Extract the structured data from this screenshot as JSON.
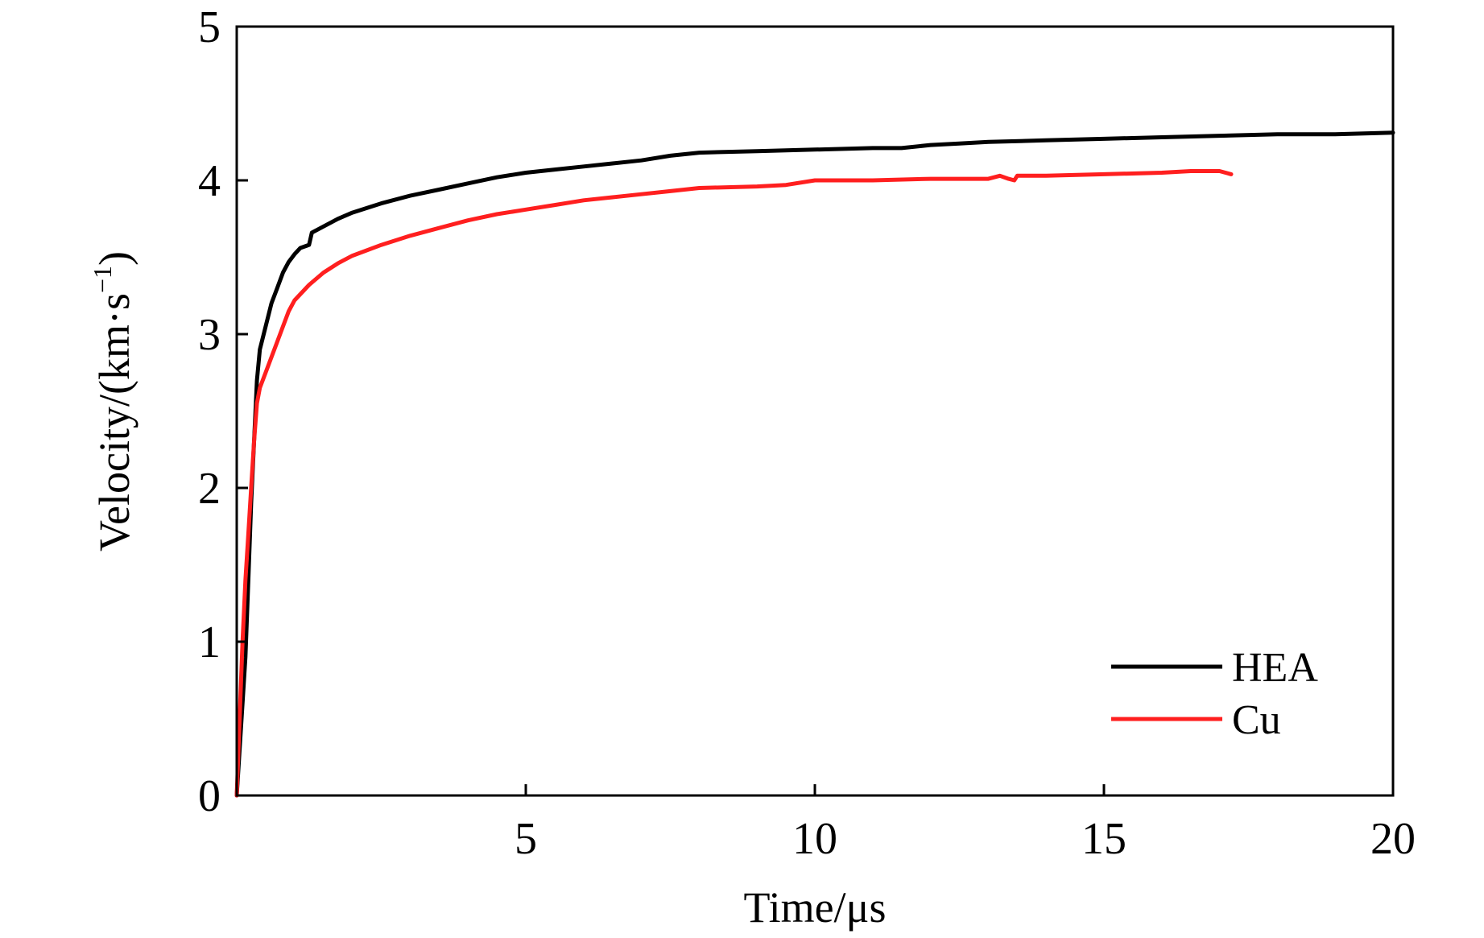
{
  "chart_data": {
    "type": "line",
    "xlabel": "Time/μs",
    "ylabel_main": "Velocity/(km·s",
    "ylabel_sup": "−1",
    "ylabel_close": ")",
    "xlim": [
      0,
      20
    ],
    "ylim": [
      0,
      5
    ],
    "x_ticks": [
      5,
      10,
      15,
      20
    ],
    "x_tick_labels": [
      "5",
      "10",
      "15",
      "20"
    ],
    "y_ticks": [
      0,
      1,
      2,
      3,
      4,
      5
    ],
    "y_tick_labels": [
      "0",
      "1",
      "2",
      "3",
      "4",
      "5"
    ],
    "grid": false,
    "legend_position": "bottom-right",
    "series": [
      {
        "name": "HEA",
        "color": "#000000",
        "points": [
          [
            0.0,
            0.0
          ],
          [
            0.05,
            0.3
          ],
          [
            0.1,
            0.6
          ],
          [
            0.15,
            0.9
          ],
          [
            0.2,
            1.4
          ],
          [
            0.25,
            1.9
          ],
          [
            0.3,
            2.3
          ],
          [
            0.35,
            2.7
          ],
          [
            0.4,
            2.9
          ],
          [
            0.5,
            3.05
          ],
          [
            0.6,
            3.2
          ],
          [
            0.7,
            3.3
          ],
          [
            0.8,
            3.4
          ],
          [
            0.9,
            3.47
          ],
          [
            1.0,
            3.52
          ],
          [
            1.1,
            3.56
          ],
          [
            1.25,
            3.58
          ],
          [
            1.3,
            3.66
          ],
          [
            1.5,
            3.7
          ],
          [
            1.75,
            3.75
          ],
          [
            2.0,
            3.79
          ],
          [
            2.5,
            3.85
          ],
          [
            3.0,
            3.9
          ],
          [
            3.5,
            3.94
          ],
          [
            4.0,
            3.98
          ],
          [
            4.5,
            4.02
          ],
          [
            5.0,
            4.05
          ],
          [
            5.5,
            4.07
          ],
          [
            6.0,
            4.09
          ],
          [
            6.5,
            4.11
          ],
          [
            7.0,
            4.13
          ],
          [
            7.5,
            4.16
          ],
          [
            8.0,
            4.18
          ],
          [
            9.0,
            4.19
          ],
          [
            10.0,
            4.2
          ],
          [
            11.0,
            4.21
          ],
          [
            11.5,
            4.21
          ],
          [
            12.0,
            4.23
          ],
          [
            12.5,
            4.24
          ],
          [
            13.0,
            4.25
          ],
          [
            14.0,
            4.26
          ],
          [
            15.0,
            4.27
          ],
          [
            16.0,
            4.28
          ],
          [
            17.0,
            4.29
          ],
          [
            18.0,
            4.3
          ],
          [
            19.0,
            4.3
          ],
          [
            20.0,
            4.31
          ]
        ]
      },
      {
        "name": "Cu",
        "color": "#ff1f1f",
        "points": [
          [
            0.0,
            0.0
          ],
          [
            0.05,
            0.5
          ],
          [
            0.1,
            1.0
          ],
          [
            0.15,
            1.4
          ],
          [
            0.2,
            1.7
          ],
          [
            0.25,
            2.0
          ],
          [
            0.3,
            2.3
          ],
          [
            0.35,
            2.55
          ],
          [
            0.4,
            2.65
          ],
          [
            0.5,
            2.75
          ],
          [
            0.6,
            2.85
          ],
          [
            0.7,
            2.95
          ],
          [
            0.8,
            3.05
          ],
          [
            0.9,
            3.15
          ],
          [
            1.0,
            3.22
          ],
          [
            1.25,
            3.32
          ],
          [
            1.5,
            3.4
          ],
          [
            1.75,
            3.46
          ],
          [
            2.0,
            3.51
          ],
          [
            2.5,
            3.58
          ],
          [
            3.0,
            3.64
          ],
          [
            3.5,
            3.69
          ],
          [
            4.0,
            3.74
          ],
          [
            4.5,
            3.78
          ],
          [
            5.0,
            3.81
          ],
          [
            5.5,
            3.84
          ],
          [
            6.0,
            3.87
          ],
          [
            6.5,
            3.89
          ],
          [
            7.0,
            3.91
          ],
          [
            7.5,
            3.93
          ],
          [
            8.0,
            3.95
          ],
          [
            9.0,
            3.96
          ],
          [
            9.5,
            3.97
          ],
          [
            10.0,
            4.0
          ],
          [
            11.0,
            4.0
          ],
          [
            12.0,
            4.01
          ],
          [
            13.0,
            4.01
          ],
          [
            13.2,
            4.03
          ],
          [
            13.35,
            4.01
          ],
          [
            13.45,
            4.0
          ],
          [
            13.5,
            4.03
          ],
          [
            14.0,
            4.03
          ],
          [
            15.0,
            4.04
          ],
          [
            16.0,
            4.05
          ],
          [
            16.5,
            4.06
          ],
          [
            17.0,
            4.06
          ],
          [
            17.2,
            4.04
          ]
        ]
      }
    ]
  }
}
